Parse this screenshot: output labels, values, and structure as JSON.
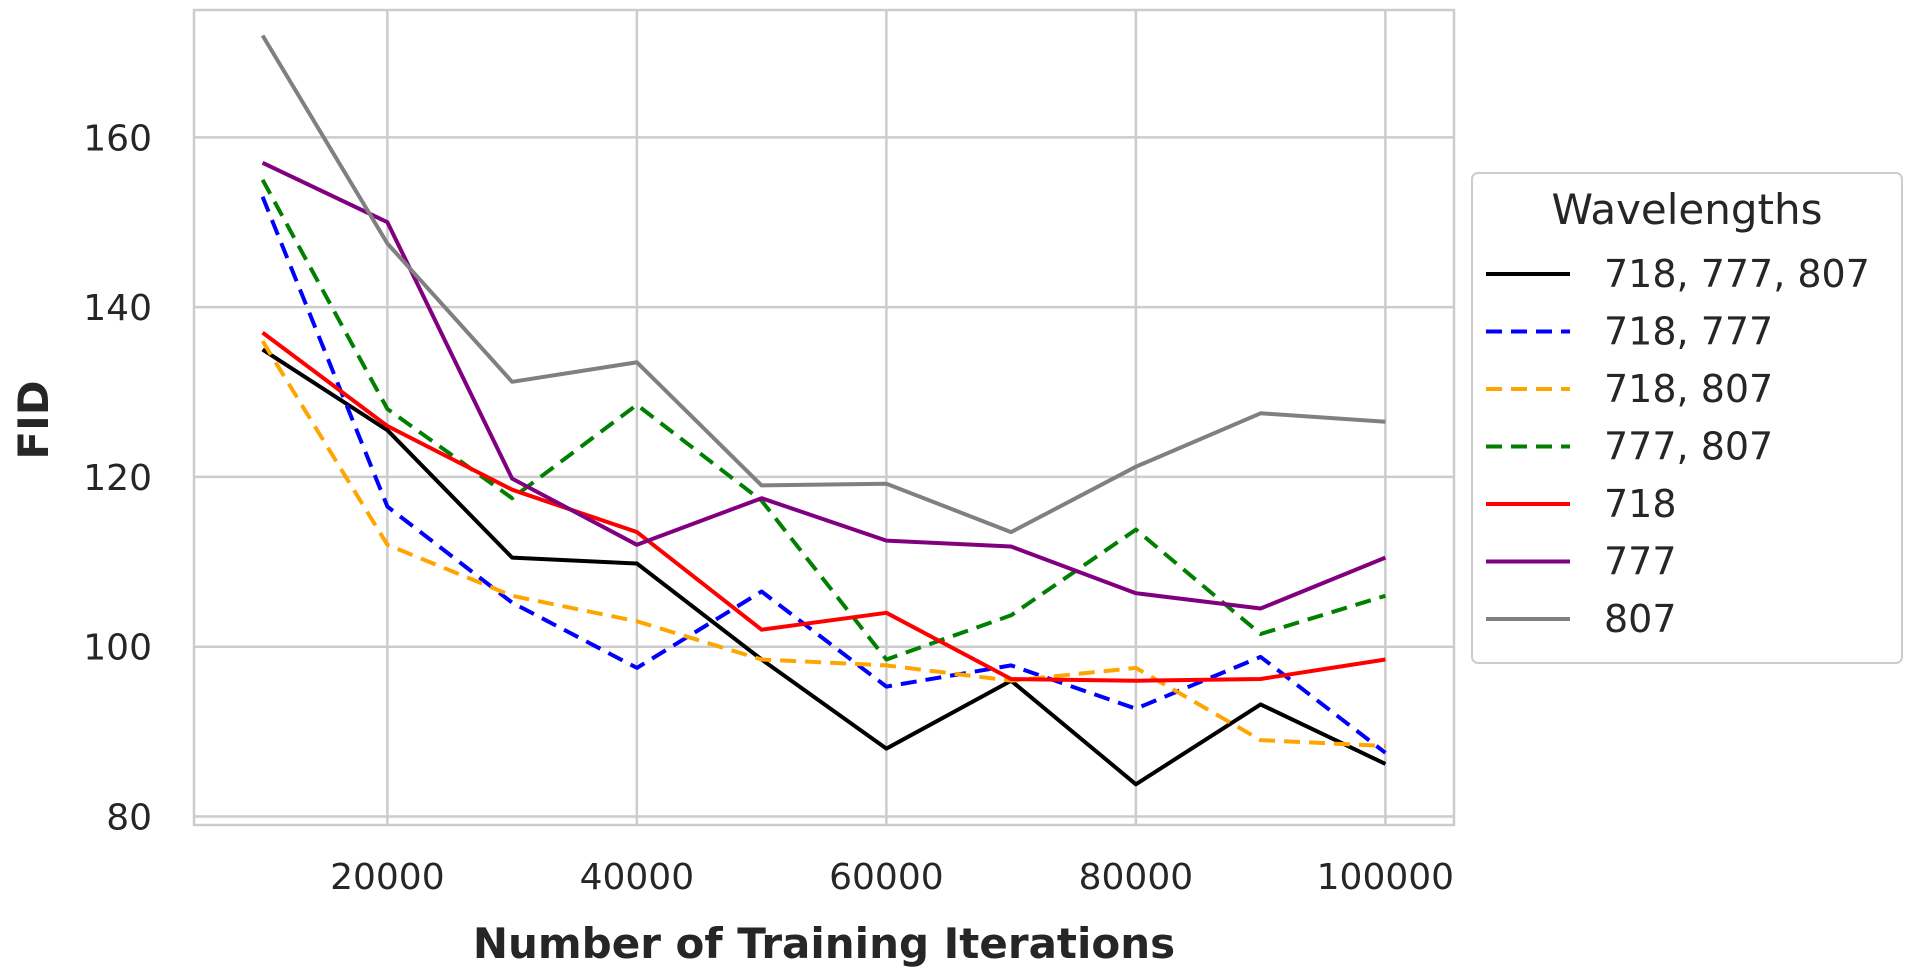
{
  "chart_data": {
    "type": "line",
    "title": "",
    "xlabel": "Number of Training Iterations",
    "ylabel": "FID",
    "xlim": [
      4500,
      105500
    ],
    "ylim": [
      79,
      175
    ],
    "xticks": [
      20000,
      40000,
      60000,
      80000,
      100000
    ],
    "yticks": [
      80,
      100,
      120,
      140,
      160
    ],
    "grid": true,
    "legend": {
      "title": "Wavelengths",
      "placement": "outside-right"
    },
    "x": [
      10000,
      20000,
      30000,
      40000,
      50000,
      60000,
      70000,
      80000,
      90000,
      100000
    ],
    "series": [
      {
        "name": "718, 777, 807",
        "color": "#000000",
        "dash": "solid",
        "values": [
          135,
          125.5,
          110.5,
          109.8,
          98.5,
          88,
          96,
          83.8,
          93.2,
          86.2
        ]
      },
      {
        "name": "718, 777",
        "color": "#0000ff",
        "dash": "dashed",
        "values": [
          153,
          116.5,
          105.2,
          97.5,
          106.5,
          95.3,
          97.8,
          92.7,
          98.8,
          87.5
        ]
      },
      {
        "name": "718, 807",
        "color": "#ffa500",
        "dash": "dashed",
        "values": [
          136,
          112,
          106,
          103,
          98.5,
          97.8,
          96,
          97.5,
          89,
          88.3
        ]
      },
      {
        "name": "777, 807",
        "color": "#008000",
        "dash": "dashed",
        "values": [
          155,
          128,
          117.5,
          128.5,
          117.2,
          98.5,
          103.7,
          113.8,
          101.5,
          106
        ]
      },
      {
        "name": "718",
        "color": "#ff0000",
        "dash": "solid",
        "values": [
          137,
          126,
          118.5,
          113.5,
          102,
          104,
          96.2,
          96,
          96.2,
          98.5
        ]
      },
      {
        "name": "777",
        "color": "#800080",
        "dash": "solid",
        "values": [
          157,
          150,
          119.8,
          112,
          117.5,
          112.5,
          111.8,
          106.3,
          104.5,
          110.5
        ]
      },
      {
        "name": "807",
        "color": "#808080",
        "dash": "solid",
        "values": [
          172,
          147.5,
          131.2,
          133.5,
          119,
          119.2,
          113.5,
          121.2,
          127.5,
          126.5
        ]
      }
    ]
  }
}
